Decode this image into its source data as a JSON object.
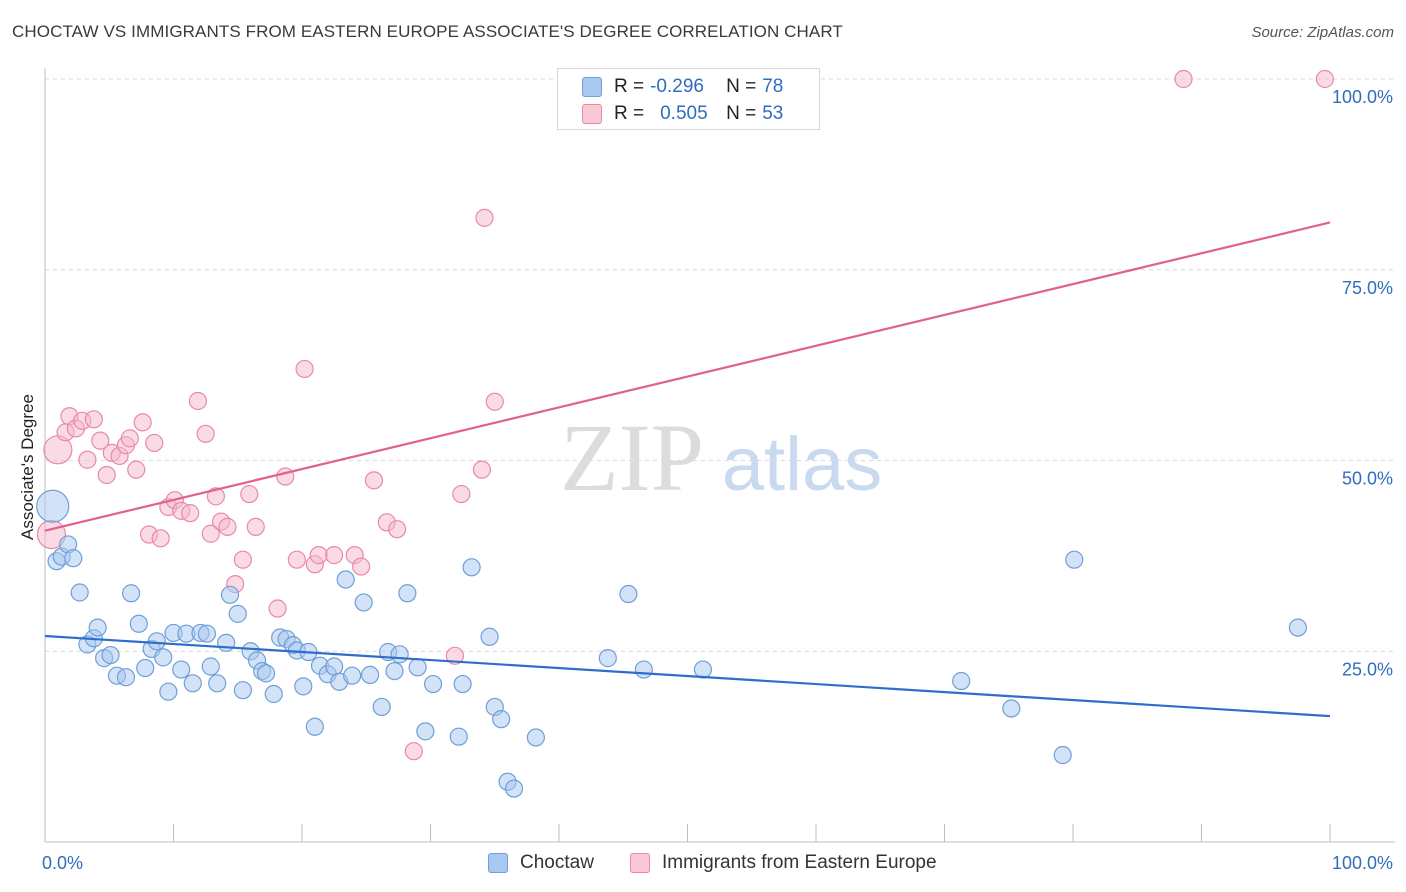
{
  "title": "CHOCTAW VS IMMIGRANTS FROM EASTERN EUROPE ASSOCIATE'S DEGREE CORRELATION CHART",
  "source": "Source: ZipAtlas.com",
  "watermark": {
    "zip": "ZIP",
    "atlas": "atlas"
  },
  "legend_top": [
    {
      "label": "R =",
      "r": "-0.296",
      "n_label": "N =",
      "n": "78"
    },
    {
      "label": "R =",
      "r": "0.505",
      "n_label": "N =",
      "n": "53"
    }
  ],
  "legend_bottom": [
    "Choctaw",
    "Immigrants from Eastern Europe"
  ],
  "colors": {
    "blue_fill": "#a8c8ef",
    "blue_stroke": "#6f9fd8",
    "blue_line": "#2f6dcc",
    "pink_fill": "#f5b8cb",
    "pink_stroke": "#e88aa6",
    "pink_line": "#e0628a",
    "axis_text": "#2f6dbd",
    "grid": "#d9d9d9"
  },
  "chart_data": {
    "type": "scatter",
    "title": "CHOCTAW VS IMMIGRANTS FROM EASTERN EUROPE ASSOCIATE'S DEGREE CORRELATION CHART",
    "xlabel": "",
    "ylabel": "Associate's Degree",
    "xlim": [
      0,
      100
    ],
    "ylim": [
      0,
      100
    ],
    "x_tick_labels": [
      "0.0%",
      "100.0%"
    ],
    "y_tick_labels": [
      "25.0%",
      "50.0%",
      "75.0%",
      "100.0%"
    ],
    "y_ticks": [
      25,
      50,
      75,
      100
    ],
    "series": [
      {
        "name": "Choctaw",
        "color": "blue",
        "trend": {
          "x": [
            0,
            100
          ],
          "y": [
            27.0,
            16.5
          ]
        },
        "points": [
          [
            0.6,
            44.0
          ],
          [
            0.9,
            36.8
          ],
          [
            1.3,
            37.4
          ],
          [
            1.8,
            39.0
          ],
          [
            2.2,
            37.2
          ],
          [
            2.7,
            32.7
          ],
          [
            3.3,
            25.9
          ],
          [
            3.8,
            26.7
          ],
          [
            4.1,
            28.1
          ],
          [
            4.6,
            24.1
          ],
          [
            5.1,
            24.5
          ],
          [
            5.6,
            21.8
          ],
          [
            6.3,
            21.6
          ],
          [
            6.7,
            32.6
          ],
          [
            7.3,
            28.6
          ],
          [
            7.8,
            22.8
          ],
          [
            8.3,
            25.3
          ],
          [
            8.7,
            26.3
          ],
          [
            9.2,
            24.2
          ],
          [
            9.6,
            19.7
          ],
          [
            10.0,
            27.4
          ],
          [
            10.6,
            22.6
          ],
          [
            11.0,
            27.3
          ],
          [
            11.5,
            20.8
          ],
          [
            12.1,
            27.4
          ],
          [
            12.6,
            27.3
          ],
          [
            12.9,
            23.0
          ],
          [
            13.4,
            20.8
          ],
          [
            14.1,
            26.1
          ],
          [
            14.4,
            32.4
          ],
          [
            15.0,
            29.9
          ],
          [
            15.4,
            19.9
          ],
          [
            16.0,
            25.0
          ],
          [
            16.5,
            23.8
          ],
          [
            16.9,
            22.4
          ],
          [
            17.2,
            22.1
          ],
          [
            17.8,
            19.4
          ],
          [
            18.3,
            26.8
          ],
          [
            18.8,
            26.6
          ],
          [
            19.3,
            25.8
          ],
          [
            19.6,
            25.1
          ],
          [
            20.1,
            20.4
          ],
          [
            20.5,
            24.9
          ],
          [
            21.0,
            15.1
          ],
          [
            21.4,
            23.1
          ],
          [
            22.0,
            22.0
          ],
          [
            22.5,
            23.0
          ],
          [
            22.9,
            21.0
          ],
          [
            23.4,
            34.4
          ],
          [
            23.9,
            21.8
          ],
          [
            24.8,
            31.4
          ],
          [
            25.3,
            21.9
          ],
          [
            26.2,
            17.7
          ],
          [
            26.7,
            24.9
          ],
          [
            27.2,
            22.4
          ],
          [
            27.6,
            24.6
          ],
          [
            28.2,
            32.6
          ],
          [
            29.0,
            22.9
          ],
          [
            29.6,
            14.5
          ],
          [
            30.2,
            20.7
          ],
          [
            32.2,
            13.8
          ],
          [
            32.5,
            20.7
          ],
          [
            33.2,
            36.0
          ],
          [
            34.6,
            26.9
          ],
          [
            35.0,
            17.7
          ],
          [
            35.5,
            16.1
          ],
          [
            36.0,
            7.9
          ],
          [
            36.5,
            7.0
          ],
          [
            38.2,
            13.7
          ],
          [
            43.8,
            24.1
          ],
          [
            45.4,
            32.5
          ],
          [
            46.6,
            22.6
          ],
          [
            51.2,
            22.6
          ],
          [
            71.3,
            21.1
          ],
          [
            75.2,
            17.5
          ],
          [
            79.2,
            11.4
          ],
          [
            80.1,
            37.0
          ],
          [
            97.5,
            28.1
          ]
        ]
      },
      {
        "name": "Immigrants from Eastern Europe",
        "color": "pink",
        "trend": {
          "x": [
            0,
            100
          ],
          "y": [
            40.8,
            81.2
          ]
        },
        "points": [
          [
            0.5,
            40.3
          ],
          [
            1.0,
            51.4
          ],
          [
            1.6,
            53.7
          ],
          [
            1.9,
            55.8
          ],
          [
            2.4,
            54.2
          ],
          [
            2.9,
            55.2
          ],
          [
            3.3,
            50.1
          ],
          [
            3.8,
            55.4
          ],
          [
            4.3,
            52.6
          ],
          [
            4.8,
            48.1
          ],
          [
            5.2,
            51.0
          ],
          [
            5.8,
            50.6
          ],
          [
            6.3,
            52.0
          ],
          [
            6.6,
            52.9
          ],
          [
            7.1,
            48.8
          ],
          [
            7.6,
            55.0
          ],
          [
            8.1,
            40.3
          ],
          [
            8.5,
            52.3
          ],
          [
            9.0,
            39.8
          ],
          [
            9.6,
            43.9
          ],
          [
            10.1,
            44.8
          ],
          [
            10.6,
            43.4
          ],
          [
            11.3,
            43.1
          ],
          [
            11.9,
            57.8
          ],
          [
            12.5,
            53.5
          ],
          [
            12.9,
            40.4
          ],
          [
            13.3,
            45.3
          ],
          [
            13.7,
            42.0
          ],
          [
            14.2,
            41.3
          ],
          [
            14.8,
            33.8
          ],
          [
            15.4,
            37.0
          ],
          [
            15.9,
            45.6
          ],
          [
            16.4,
            41.3
          ],
          [
            18.1,
            30.6
          ],
          [
            18.7,
            47.9
          ],
          [
            19.6,
            37.0
          ],
          [
            20.2,
            62.0
          ],
          [
            21.0,
            36.4
          ],
          [
            21.3,
            37.6
          ],
          [
            22.5,
            37.6
          ],
          [
            24.1,
            37.6
          ],
          [
            24.6,
            36.1
          ],
          [
            25.6,
            47.4
          ],
          [
            26.6,
            41.9
          ],
          [
            27.4,
            41.0
          ],
          [
            28.7,
            11.9
          ],
          [
            31.9,
            24.4
          ],
          [
            32.4,
            45.6
          ],
          [
            34.0,
            48.8
          ],
          [
            34.2,
            81.8
          ],
          [
            35.0,
            57.7
          ],
          [
            88.6,
            100.0
          ],
          [
            99.6,
            100.0
          ]
        ]
      }
    ]
  }
}
